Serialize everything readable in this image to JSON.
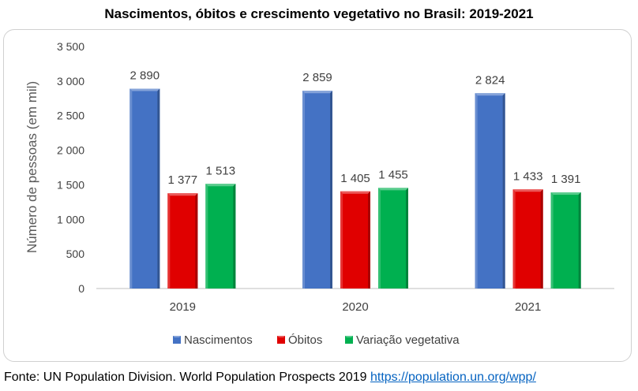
{
  "title": "Nascimentos, óbitos e crescimento vegetativo no Brasil: 2019-2021",
  "source": {
    "text": "Fonte: UN Population Division. World Population Prospects 2019",
    "link": "https://population.un.org/wpp/"
  },
  "chart_data": {
    "type": "bar",
    "categories": [
      "2019",
      "2020",
      "2021"
    ],
    "series": [
      {
        "name": "Nascimentos",
        "values": [
          2890,
          2859,
          2824
        ],
        "labels": [
          "2 890",
          "2 859",
          "2 824"
        ],
        "color": "#4472c4"
      },
      {
        "name": "Óbitos",
        "values": [
          1377,
          1405,
          1433
        ],
        "labels": [
          "1 377",
          "1 405",
          "1 433"
        ],
        "color": "#e00000"
      },
      {
        "name": "Variação vegetativa",
        "values": [
          1513,
          1455,
          1391
        ],
        "labels": [
          "1 513",
          "1 455",
          "1 391"
        ],
        "color": "#00b050"
      }
    ],
    "ylabel": "Número de pessoas (em mil)",
    "ylim": [
      0,
      3500
    ],
    "yticks": [
      0,
      500,
      1000,
      1500,
      2000,
      2500,
      3000,
      3500
    ],
    "ytick_labels": [
      "0",
      "500",
      "1 000",
      "1 500",
      "2 000",
      "2 500",
      "3 000",
      "3 500"
    ],
    "grid": false,
    "legend": "bottom"
  }
}
